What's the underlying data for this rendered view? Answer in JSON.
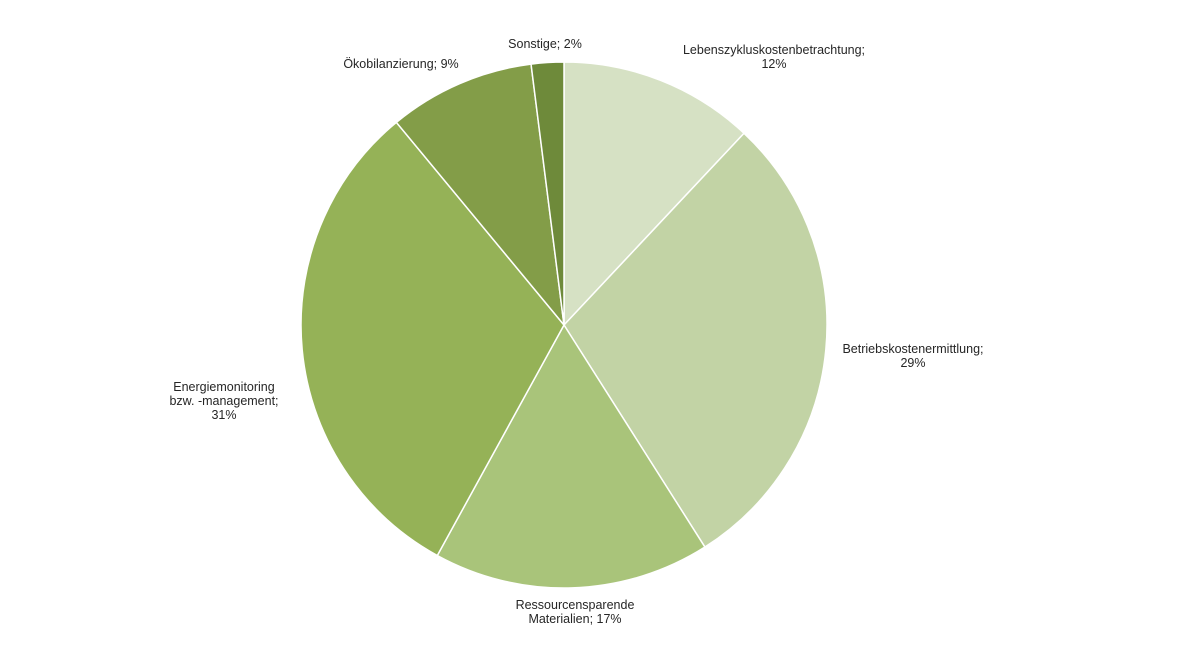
{
  "chart_data": {
    "type": "pie",
    "slices": [
      {
        "label_lines": [
          "Lebenszykluskostenbetrachtung;",
          "12%"
        ],
        "category": "Lebenszykluskostenbetrachtung",
        "value": 12,
        "color": "#d6e1c4"
      },
      {
        "label_lines": [
          "Betriebskostenermittlung;",
          "29%"
        ],
        "category": "Betriebskostenermittlung",
        "value": 29,
        "color": "#c2d3a5"
      },
      {
        "label_lines": [
          "Ressourcensparende",
          "Materialien; 17%"
        ],
        "category": "Ressourcensparende Materialien",
        "value": 17,
        "color": "#a9c47a"
      },
      {
        "label_lines": [
          "Energiemonitoring",
          "bzw. -management;",
          "31%"
        ],
        "category": "Energiemonitoring bzw. -management",
        "value": 31,
        "color": "#95b257"
      },
      {
        "label_lines": [
          "Ökobilanzierung; 9%"
        ],
        "category": "Ökobilanzierung",
        "value": 9,
        "color": "#839d48"
      },
      {
        "label_lines": [
          "Sonstige; 2%"
        ],
        "category": "Sonstige",
        "value": 2,
        "color": "#6e8a3a"
      }
    ],
    "legend": "none",
    "data_labels": "outside",
    "start_angle": "12 o'clock",
    "direction": "clockwise"
  }
}
